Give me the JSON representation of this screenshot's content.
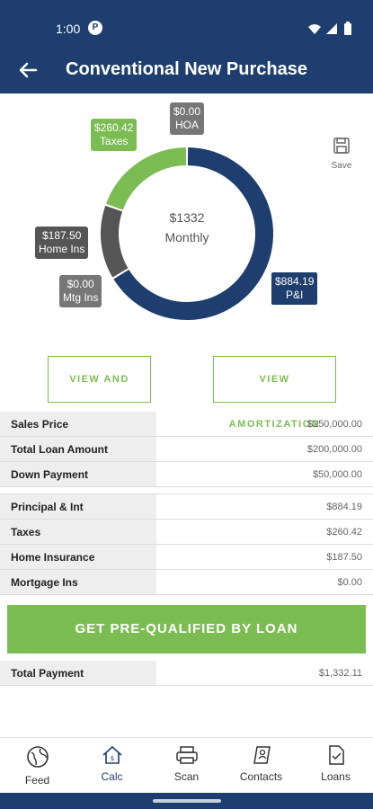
{
  "status_bar": {
    "time": "1:00",
    "app_badge": "P"
  },
  "header": {
    "title": "Conventional New Purchase"
  },
  "chart": {
    "center_amount": "$1332",
    "center_label": "Monthly",
    "segments": [
      {
        "name": "P&I",
        "label_value": "$884.19",
        "value": 884.19,
        "color": "#1d3e6e"
      },
      {
        "name": "Mtg Ins",
        "label_value": "$0.00",
        "value": 0.0,
        "color": "#777777"
      },
      {
        "name": "Home Ins",
        "label_value": "$187.50",
        "value": 187.5,
        "color": "#555555"
      },
      {
        "name": "Taxes",
        "label_value": "$260.42",
        "value": 260.42,
        "color": "#7cbd53"
      },
      {
        "name": "HOA",
        "label_value": "$0.00",
        "value": 0.0,
        "color": "#777777"
      }
    ]
  },
  "save": {
    "label": "Save"
  },
  "buttons": {
    "view_share": "VIEW AND SHARE",
    "view_amortization": "VIEW AMORTIZATION"
  },
  "loan_table": [
    {
      "label": "Sales Price",
      "value": "$250,000.00"
    },
    {
      "label": "Total Loan Amount",
      "value": "$200,000.00"
    },
    {
      "label": "Down Payment",
      "value": "$50,000.00"
    }
  ],
  "payment_table": [
    {
      "label": "Principal & Int",
      "value": "$884.19"
    },
    {
      "label": "Taxes",
      "value": "$260.42"
    },
    {
      "label": "Home Insurance",
      "value": "$187.50"
    },
    {
      "label": "Mortgage Ins",
      "value": "$0.00"
    }
  ],
  "cta": {
    "label": "GET PRE-QUALIFIED BY LOAN"
  },
  "total": {
    "label": "Total Payment",
    "value": "$1,332.11"
  },
  "nav": {
    "items": [
      {
        "label": "Feed",
        "icon": "globe-icon"
      },
      {
        "label": "Calc",
        "icon": "home-calc-icon"
      },
      {
        "label": "Scan",
        "icon": "scanner-icon"
      },
      {
        "label": "Contacts",
        "icon": "contacts-icon"
      },
      {
        "label": "Loans",
        "icon": "document-check-icon"
      }
    ],
    "active": "Calc"
  },
  "colors": {
    "primary": "#1d3e6e",
    "accent": "#7cbd53"
  }
}
